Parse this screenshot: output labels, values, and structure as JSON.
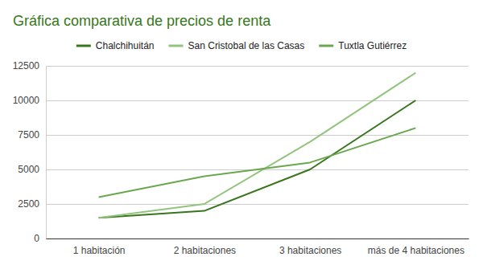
{
  "chart_data": {
    "type": "line",
    "title": "Gráfica comparativa de precios de renta",
    "categories": [
      "1 habitación",
      "2 habitaciones",
      "3 habitaciones",
      "más de 4 habitaciones"
    ],
    "series": [
      {
        "name": "Chalchihuitán",
        "color": "#38761d",
        "values": [
          1500,
          2000,
          5000,
          10000
        ]
      },
      {
        "name": "San Cristobal de las Casas",
        "color": "#93c47d",
        "values": [
          1500,
          2500,
          7000,
          12000
        ]
      },
      {
        "name": "Tuxtla Gutiérrez",
        "color": "#6aa84f",
        "values": [
          3000,
          4500,
          5500,
          8000
        ]
      }
    ],
    "ylim": [
      0,
      12500
    ],
    "yticks": [
      0,
      2500,
      5000,
      7500,
      10000,
      12500
    ],
    "grid": true,
    "legend": "top"
  }
}
